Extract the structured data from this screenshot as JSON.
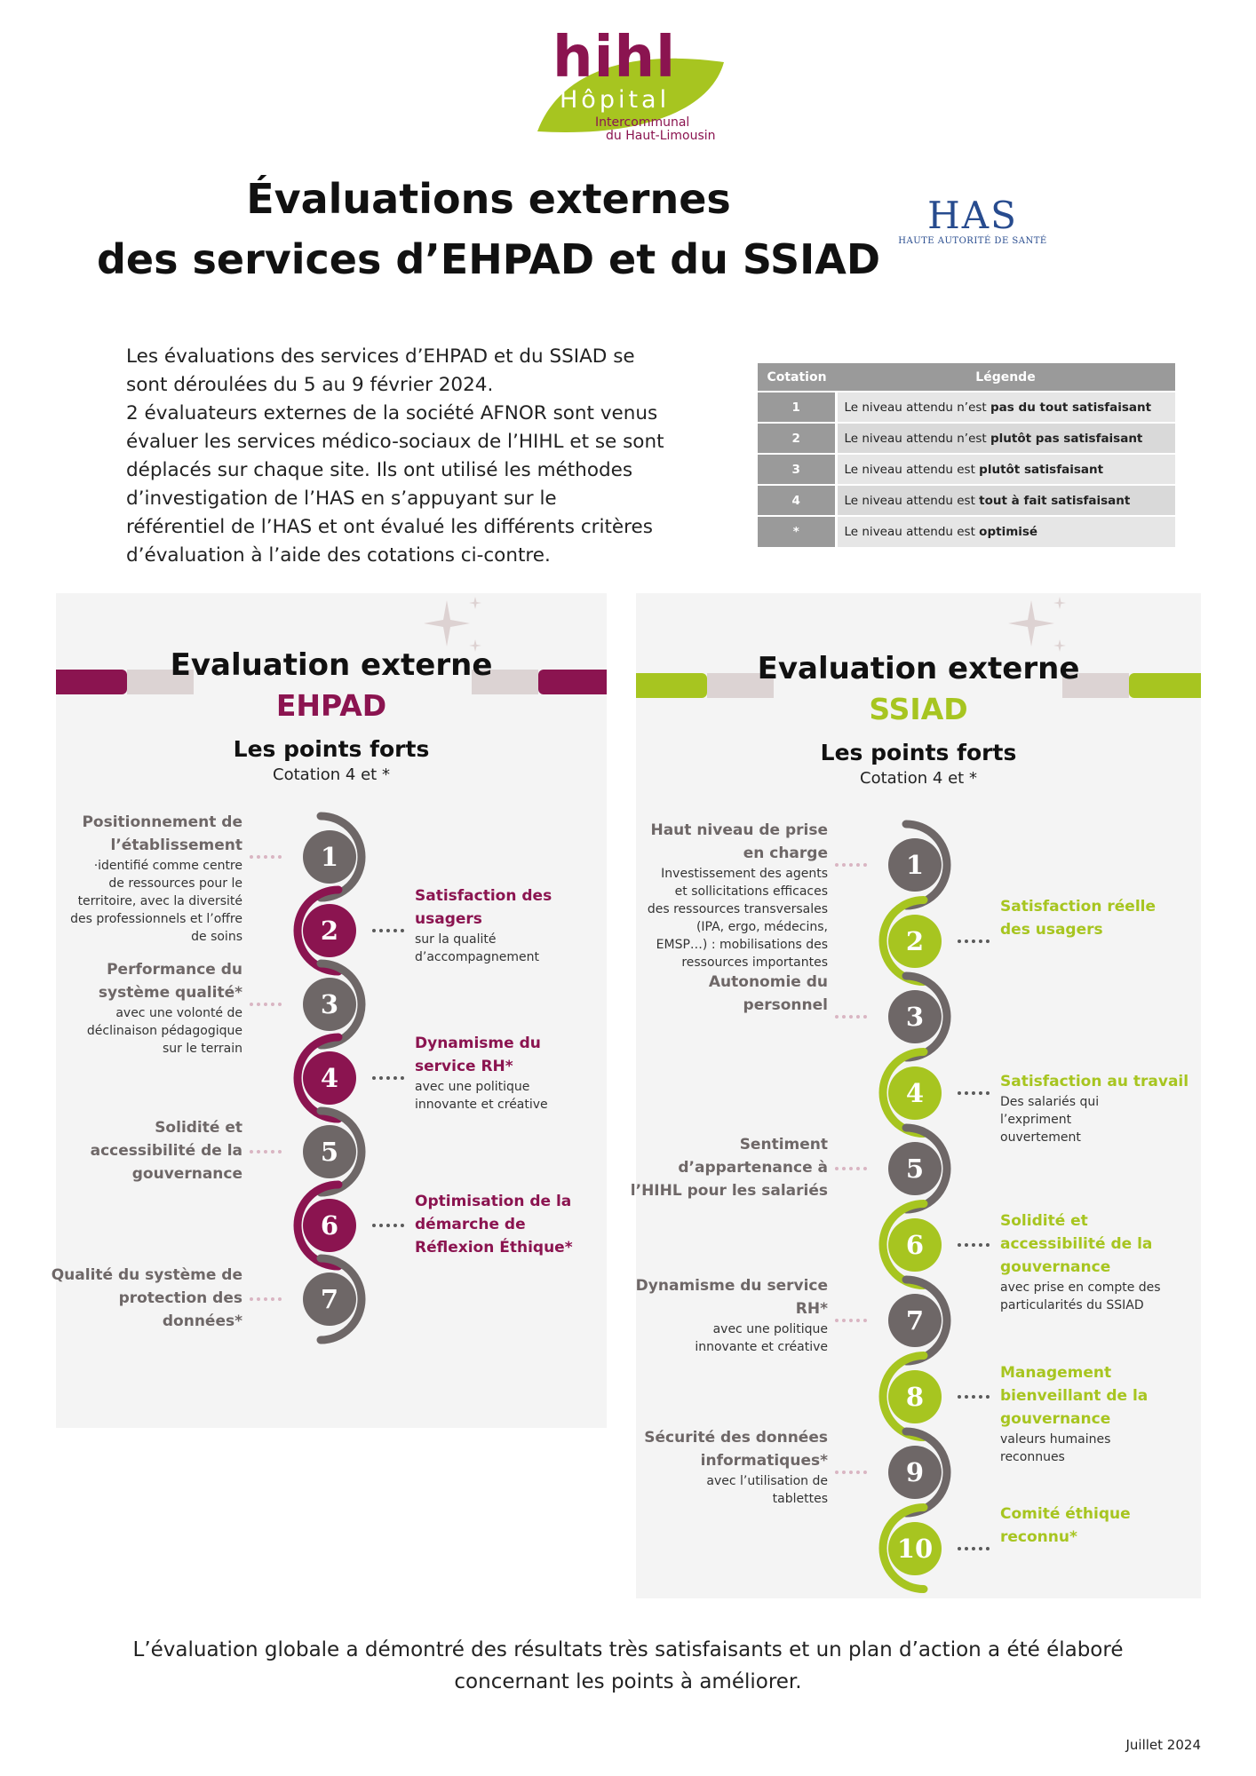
{
  "logo": {
    "brand": "hihl",
    "hopital": "Hôpital",
    "line1": "Intercommunal",
    "line2": "du Haut-Limousin"
  },
  "title": {
    "line1": "Évaluations externes",
    "line2": "des services d’EHPAD et du SSIAD"
  },
  "has_logo": {
    "mark": "HAS",
    "subtitle": "HAUTE AUTORITÉ DE SANTÉ"
  },
  "intro": {
    "lines": [
      "Les évaluations des services d’EHPAD et du SSIAD se",
      "sont déroulées du 5 au 9 février 2024.",
      "2 évaluateurs externes de la société AFNOR sont venus",
      "évaluer les services médico-sociaux de l’HIHL et se sont",
      "déplacés sur chaque site. Ils ont utilisé les méthodes",
      "d’investigation de l’HAS en s’appuyant sur le",
      "référentiel de l’HAS et ont évalué les différents critères",
      "d’évaluation à l’aide des cotations ci-contre."
    ]
  },
  "cotation_table": {
    "headers": [
      "Cotation",
      "Légende"
    ],
    "rows": [
      {
        "code": "1",
        "prefix": "Le niveau attendu n’est ",
        "bold": "pas du tout satisfaisant"
      },
      {
        "code": "2",
        "prefix": "Le niveau attendu n’est ",
        "bold": "plutôt pas satisfaisant"
      },
      {
        "code": "3",
        "prefix": "Le niveau attendu est ",
        "bold": "plutôt satisfaisant"
      },
      {
        "code": "4",
        "prefix": "Le niveau attendu est ",
        "bold": "tout à fait satisfaisant"
      },
      {
        "code": "*",
        "prefix": "Le niveau attendu est ",
        "bold": "optimisé"
      }
    ]
  },
  "colors": {
    "ehpad_accent": "#8b1450",
    "ssiad_accent": "#a7c520",
    "neutral_circle": "#6e6767",
    "dots_left": "#d9b5c2",
    "dots_right": "#5a5a5a"
  },
  "ehpad": {
    "title": "Evaluation externe",
    "subtitle": "EHPAD",
    "forts": "Les points forts",
    "cotation": "Cotation 4 et *",
    "items": [
      {
        "n": "1",
        "side": "left",
        "title": [
          "Positionnement de",
          "l’établissement"
        ],
        "desc": [
          "·identifié comme centre",
          "de ressources pour le",
          "territoire, avec la diversité",
          "des professionnels et l’offre",
          "de soins"
        ]
      },
      {
        "n": "2",
        "side": "right",
        "title": [
          "Satisfaction des",
          "usagers"
        ],
        "desc": [
          "sur la qualité",
          "d’accompagnement"
        ]
      },
      {
        "n": "3",
        "side": "left",
        "title": [
          "Performance du",
          "système qualité*"
        ],
        "desc": [
          "avec une volonté de",
          "déclinaison pédagogique",
          "sur le terrain"
        ]
      },
      {
        "n": "4",
        "side": "right",
        "title": [
          "Dynamisme du",
          "service RH*"
        ],
        "desc": [
          "avec une politique",
          "innovante et créative"
        ]
      },
      {
        "n": "5",
        "side": "left",
        "title": [
          "Solidité et",
          "accessibilité de la",
          "gouvernance"
        ],
        "desc": []
      },
      {
        "n": "6",
        "side": "right",
        "title": [
          "Optimisation de la",
          "démarche de",
          "Réflexion Éthique*"
        ],
        "desc": []
      },
      {
        "n": "7",
        "side": "left",
        "title": [
          "Qualité du système de",
          "protection des",
          "données*"
        ],
        "desc": []
      }
    ]
  },
  "ssiad": {
    "title": "Evaluation externe",
    "subtitle": "SSIAD",
    "forts": "Les points forts",
    "cotation": "Cotation 4 et *",
    "items": [
      {
        "n": "1",
        "side": "left",
        "title": [
          "Haut niveau de prise",
          "en charge"
        ],
        "desc": [
          "Investissement des agents",
          "et sollicitations efficaces",
          "des ressources transversales",
          "(IPA, ergo, médecins,",
          "EMSP…) : mobilisations des",
          "ressources importantes"
        ]
      },
      {
        "n": "2",
        "side": "right",
        "title": [
          "Satisfaction réelle",
          "des usagers"
        ],
        "desc": []
      },
      {
        "n": "3",
        "side": "left",
        "title": [
          "Autonomie du",
          "personnel"
        ],
        "desc": []
      },
      {
        "n": "4",
        "side": "right",
        "title": [
          "Satisfaction au travail"
        ],
        "desc": [
          "Des salariés qui",
          "l’expriment",
          "ouvertement"
        ]
      },
      {
        "n": "5",
        "side": "left",
        "title": [
          "Sentiment",
          "d’appartenance à",
          "l’HIHL pour les salariés"
        ],
        "desc": []
      },
      {
        "n": "6",
        "side": "right",
        "title": [
          "Solidité et",
          "accessibilité de la",
          "gouvernance"
        ],
        "desc": [
          "avec prise en compte des",
          "particularités du SSIAD"
        ]
      },
      {
        "n": "7",
        "side": "left",
        "title": [
          "Dynamisme du service",
          "RH*"
        ],
        "desc": [
          "avec une politique",
          "innovante et créative"
        ]
      },
      {
        "n": "8",
        "side": "right",
        "title": [
          "Management",
          "bienveillant de la",
          "gouvernance"
        ],
        "desc": [
          "valeurs humaines",
          "reconnues"
        ]
      },
      {
        "n": "9",
        "side": "left",
        "title": [
          "Sécurité des données",
          "informatiques*"
        ],
        "desc": [
          "avec l’utilisation de",
          "tablettes"
        ]
      },
      {
        "n": "10",
        "side": "right",
        "title": [
          "Comité éthique",
          "reconnu*"
        ],
        "desc": []
      }
    ]
  },
  "conclusion": {
    "line1": "L’évaluation globale a démontré des résultats très satisfaisants et un plan d’action a été élaboré",
    "line2": "concernant les points à améliorer."
  },
  "date": "Juillet 2024"
}
